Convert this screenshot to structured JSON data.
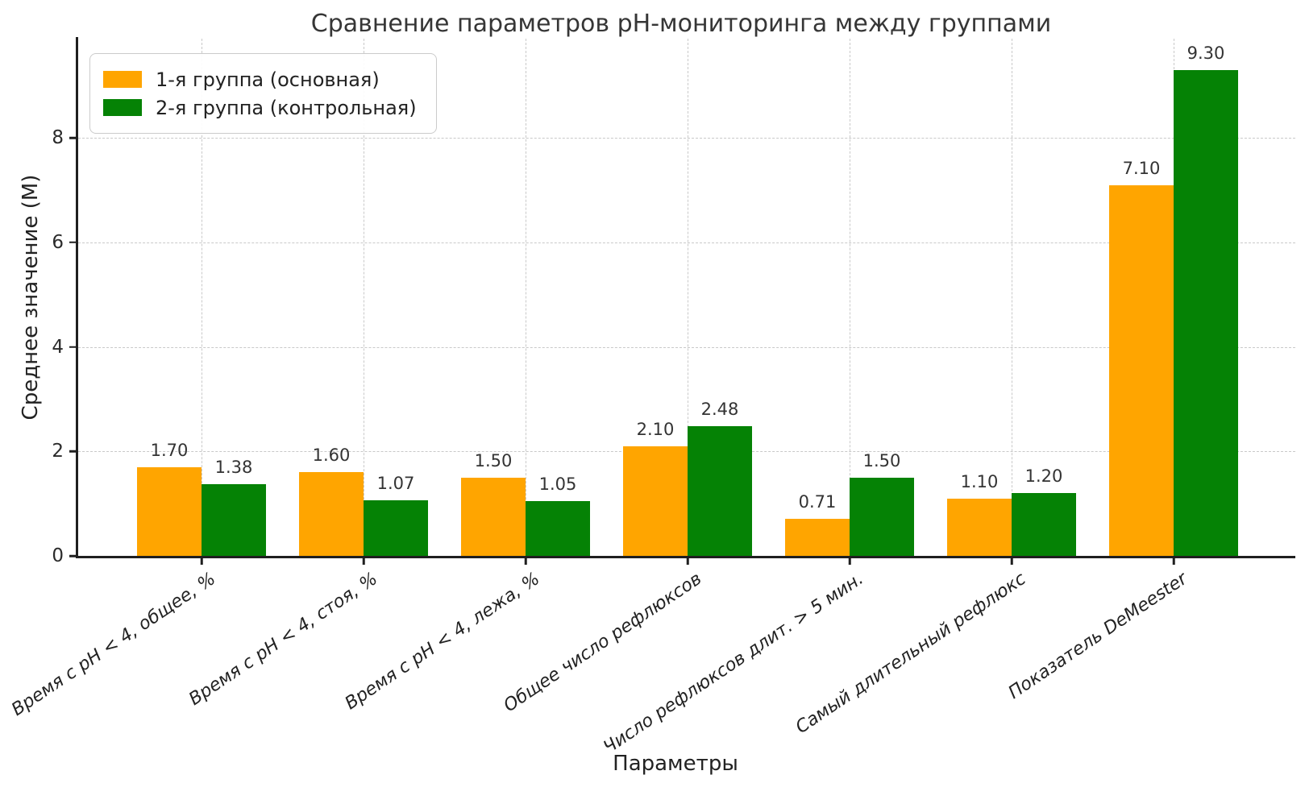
{
  "title": "Сравнение параметров pH-мониторинга между группами",
  "x_axis_label": "Параметры",
  "y_axis_label": "Среднее значение (М)",
  "y_ticks": [
    {
      "label": "0",
      "value": 0
    },
    {
      "label": "2",
      "value": 2
    },
    {
      "label": "4",
      "value": 4
    },
    {
      "label": "6",
      "value": 6
    },
    {
      "label": "8",
      "value": 8
    }
  ],
  "chart_data": {
    "type": "bar",
    "title": "Сравнение параметров pH-мониторинга между группами",
    "xlabel": "Параметры",
    "ylabel": "Среднее значение (М)",
    "ylim": [
      0,
      9.9
    ],
    "grid": true,
    "grid_style": "dashed",
    "legend_position": "upper left",
    "categories": [
      "Время с pH < 4, общее, %",
      "Время с pH < 4, стоя, %",
      "Время с pH < 4, лежа, %",
      "Общее число рефлюксов",
      "Число рефлюксов длит. > 5 мин.",
      "Самый длительный рефлюкс",
      "Показатель DeMeester"
    ],
    "series": [
      {
        "name": "1-я группа (основная)",
        "color": "#ffa500",
        "values": [
          1.7,
          1.6,
          1.5,
          2.1,
          0.71,
          1.1,
          7.1
        ],
        "value_labels": [
          "1.70",
          "1.60",
          "1.50",
          "2.10",
          "0.71",
          "1.10",
          "7.10"
        ]
      },
      {
        "name": "2-я группа (контрольная)",
        "color": "#058205",
        "values": [
          1.38,
          1.07,
          1.05,
          2.48,
          1.5,
          1.2,
          9.3
        ],
        "value_labels": [
          "1.38",
          "1.07",
          "1.05",
          "2.48",
          "1.50",
          "1.20",
          "9.30"
        ]
      }
    ]
  }
}
